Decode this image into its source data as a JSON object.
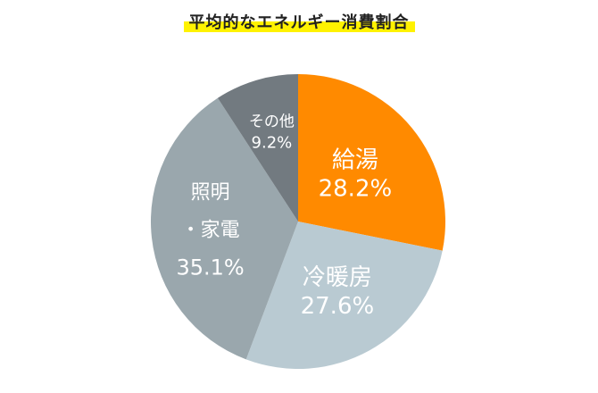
{
  "chart_data": {
    "type": "pie",
    "title": "平均的なエネルギー消費割合",
    "slices": [
      {
        "label": "給湯",
        "value": 28.2,
        "value_text": "28.2%",
        "color": "#ff8a00"
      },
      {
        "label": "冷暖房",
        "value": 27.6,
        "value_text": "27.6%",
        "color": "#b9cad2"
      },
      {
        "label": "照明・家電",
        "label_lines": [
          "照明",
          "・家電"
        ],
        "value": 35.1,
        "value_text": "35.1%",
        "color": "#9aa7ad"
      },
      {
        "label": "その他",
        "value": 9.2,
        "value_text": "9.2%",
        "color": "#727a80"
      }
    ],
    "start": "12 o'clock",
    "direction": "clockwise",
    "title_highlight_color": "#fff200"
  }
}
